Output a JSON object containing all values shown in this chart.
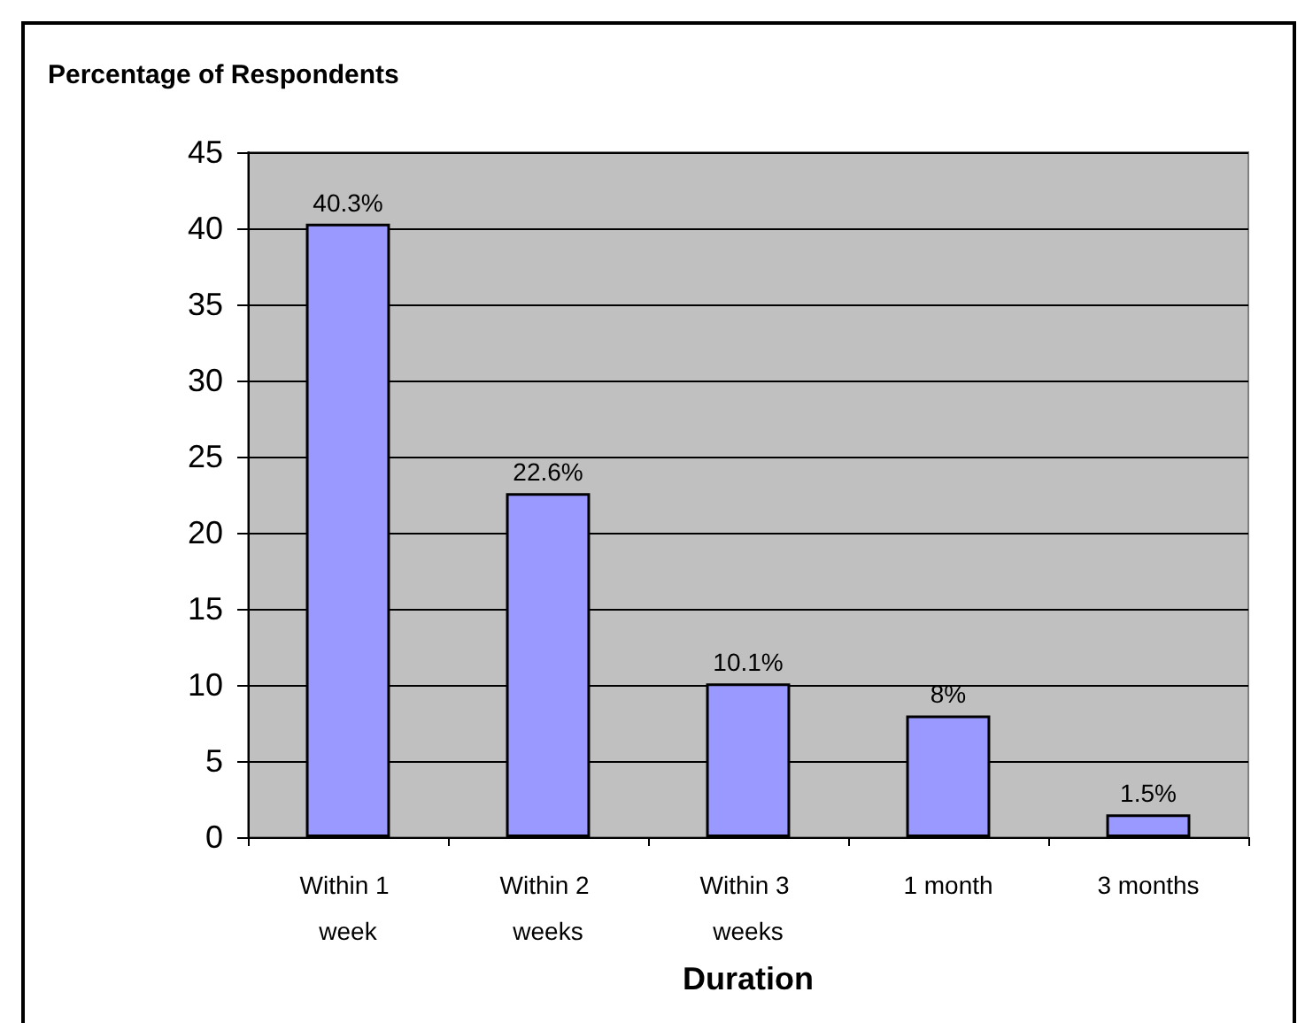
{
  "chart_data": {
    "type": "bar",
    "title": "Percentage of Respondents",
    "xlabel": "Duration",
    "categories": [
      "Within 1 week",
      "Within 2 weeks",
      "Within 3 weeks",
      "1 month",
      "3 months"
    ],
    "values": [
      40.3,
      22.6,
      10.1,
      8,
      1.5
    ],
    "value_labels": [
      "40.3%",
      "22.6%",
      "10.1%",
      "8%",
      "1.5%"
    ],
    "color": "#9999ff",
    "ylim": [
      0,
      45
    ],
    "yticks": [
      0,
      5,
      10,
      15,
      20,
      25,
      30,
      35,
      40,
      45
    ],
    "grid": "y"
  }
}
